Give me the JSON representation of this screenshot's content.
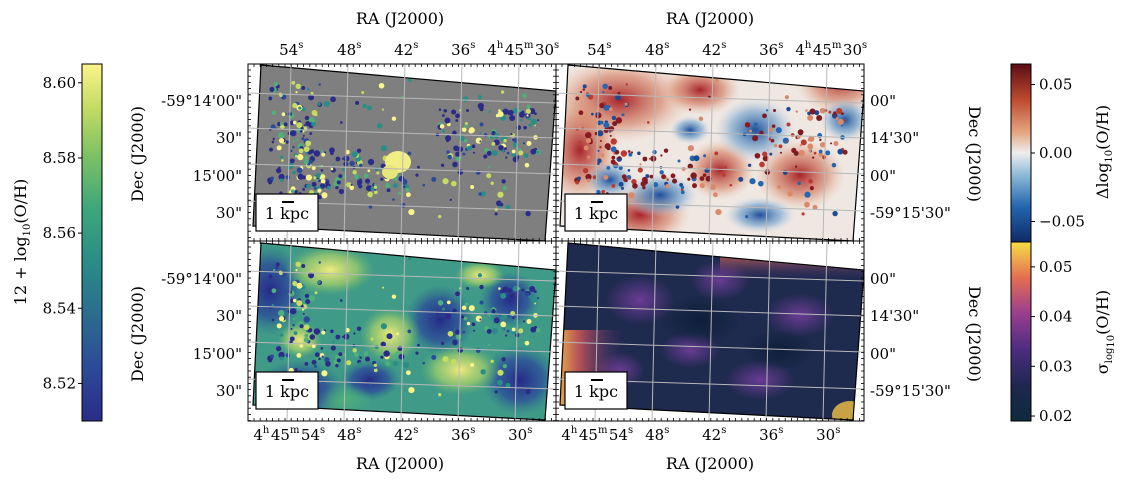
{
  "chart_data": [
    {
      "type": "heatmap",
      "panel": "top-left",
      "description_of_content": "",
      "top_axis": {
        "label": "RA (J2000)",
        "ticks": [
          "54s",
          "48s",
          "42s",
          "36s",
          "4h45m30s"
        ]
      },
      "left_axis": {
        "label": "Dec (J2000)",
        "ticks": [
          "-59°14'00\"",
          "30\"",
          "15'00\"",
          "30\""
        ]
      },
      "scalebar": "1 kpc",
      "colorbar": "metallicity"
    },
    {
      "type": "heatmap",
      "panel": "top-right",
      "top_axis": {
        "label": "RA (J2000)",
        "ticks": [
          "54s",
          "48s",
          "42s",
          "36s",
          "4h45m30s"
        ]
      },
      "right_axis": {
        "label": "Dec (J2000)",
        "ticks": [
          "00\"",
          "14'30\"",
          "00\"",
          "-59°15'30\""
        ]
      },
      "scalebar": "1 kpc",
      "colorbar": "residual"
    },
    {
      "type": "heatmap",
      "panel": "bottom-left",
      "bottom_axis": {
        "label": "RA (J2000)",
        "ticks": [
          "4h45m54s",
          "48s",
          "42s",
          "36s",
          "30s"
        ]
      },
      "left_axis": {
        "label": "Dec (J2000)",
        "ticks": [
          "-59°14'00\"",
          "30\"",
          "15'00\"",
          "30\""
        ]
      },
      "scalebar": "1 kpc",
      "colorbar": "metallicity"
    },
    {
      "type": "heatmap",
      "panel": "bottom-right",
      "bottom_axis": {
        "label": "RA (J2000)",
        "ticks": [
          "4h45m54s",
          "48s",
          "42s",
          "36s",
          "30s"
        ]
      },
      "right_axis": {
        "label": "Dec (J2000)",
        "ticks": [
          "00\"",
          "14'30\"",
          "00\"",
          "-59°15'30\""
        ]
      },
      "scalebar": "1 kpc",
      "colorbar": "uncertainty"
    }
  ],
  "colorbars": {
    "metallicity": {
      "label": "12 + log10(O/H)",
      "cmap": "viridis-like",
      "range": [
        8.51,
        8.605
      ],
      "ticks": [
        8.52,
        8.54,
        8.56,
        8.58,
        8.6
      ],
      "tick_labels": [
        "8.52",
        "8.54",
        "8.56",
        "8.58",
        "8.60"
      ]
    },
    "residual": {
      "label": "Δlog10(O/H)",
      "cmap": "RdBu_r",
      "range": [
        -0.065,
        0.065
      ],
      "ticks": [
        -0.05,
        0.0,
        0.05
      ],
      "tick_labels": [
        "−0.05",
        "0.00",
        "0.05"
      ]
    },
    "uncertainty": {
      "label": "σ log10(O/H)",
      "cmap": "inferno-like",
      "range": [
        0.019,
        0.055
      ],
      "ticks": [
        0.02,
        0.03,
        0.04,
        0.05
      ],
      "tick_labels": [
        "0.02",
        "0.03",
        "0.04",
        "0.05"
      ]
    }
  },
  "labels": {
    "ra": "RA (J2000)",
    "dec": "Dec (J2000)",
    "scalebar": "1 kpc",
    "cb_left": "12 + log",
    "cb_left_sub": "10",
    "cb_left_tail": "(O/H)",
    "cb_right_top": "Δlog",
    "cb_right_top_sub": "10",
    "cb_right_top_tail": "(O/H)",
    "cb_right_bot": "σ",
    "cb_right_bot_sub": "log",
    "cb_right_bot_subsub": "10",
    "cb_right_bot_tail": "(O/H)"
  },
  "colors": {
    "masked": "#7f7f7f",
    "grid": "#b0b0b0",
    "frame": "#000000"
  }
}
